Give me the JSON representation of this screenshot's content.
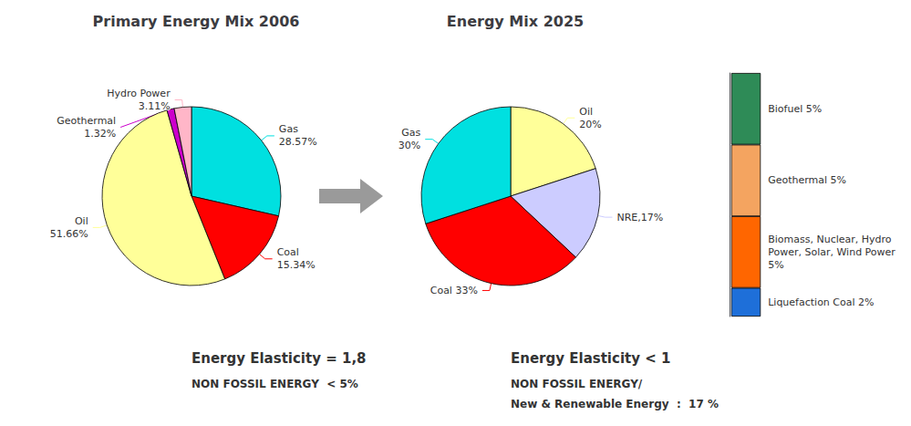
{
  "chart_data": [
    {
      "type": "pie",
      "title": "Primary Energy Mix 2006",
      "categories": [
        "Gas",
        "Coal",
        "Oil",
        "Geothermal",
        "Hydro Power"
      ],
      "values": [
        28.57,
        15.34,
        51.66,
        1.32,
        3.11
      ],
      "value_labels": [
        "Gas\n28.57%",
        "Coal\n15.34%",
        "Oil\n51.66%",
        "Geothermal\n1.32%",
        "Hydro Power\n3.11%"
      ],
      "colors": [
        "#00e0e0",
        "#ff0000",
        "#ffff99",
        "#cc00cc",
        "#ffb6c8"
      ],
      "annotations": [
        "Energy Elasticity = 1,8",
        "NON FOSSIL ENERGY  < 5%"
      ]
    },
    {
      "type": "pie",
      "title": "Energy Mix 2025",
      "categories": [
        "Oil",
        "NRE",
        "Coal",
        "Gas"
      ],
      "values": [
        20,
        17,
        33,
        30
      ],
      "value_labels": [
        "Oil\n20%",
        "NRE,17%",
        "Coal 33%",
        "Gas\n30%"
      ],
      "colors": [
        "#ffff99",
        "#ccccff",
        "#ff0000",
        "#00e0e0"
      ],
      "annotations": [
        "Energy Elasticity < 1",
        "NON FOSSIL ENERGY/",
        "New & Renewable Energy  :  17 %"
      ]
    },
    {
      "type": "bar",
      "stacked": true,
      "categories": [
        null
      ],
      "tick_labels": false,
      "ylim": [
        0,
        17
      ],
      "series": [
        {
          "name": "Biofuel 5%",
          "color": "#2e8b57",
          "values": [
            5
          ]
        },
        {
          "name": "Geothermal 5%",
          "color": "#f4a460",
          "values": [
            5
          ]
        },
        {
          "name": "Biomass, Nuclear, Hydro\nPower, Solar, Wind Power\n5%",
          "color": "#ff6600",
          "values": [
            5
          ]
        },
        {
          "name": "Liquefaction Coal 2%",
          "color": "#1e6fd9",
          "values": [
            2
          ]
        }
      ]
    }
  ]
}
